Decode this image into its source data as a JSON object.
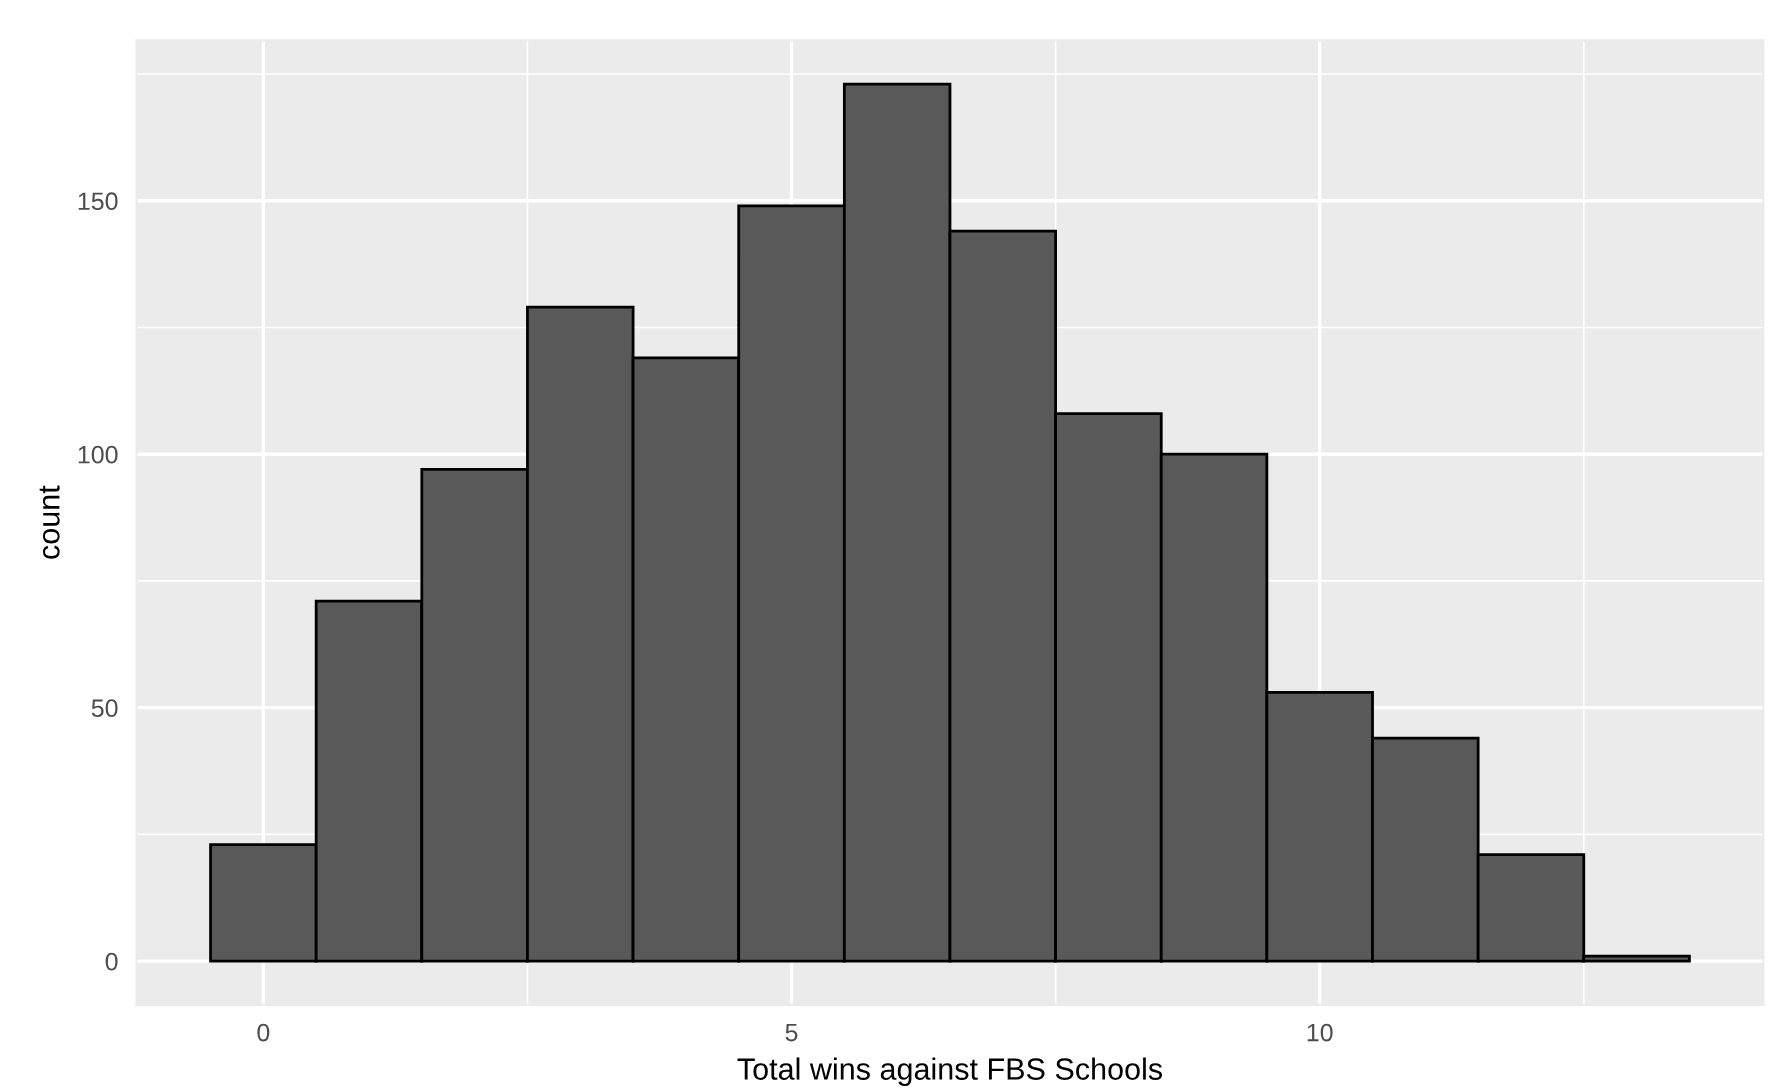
{
  "chart_data": {
    "type": "histogram",
    "xlabel": "Total wins against FBS Schools",
    "ylabel": "count",
    "bins": [
      -0.5,
      0.5,
      1.5,
      2.5,
      3.5,
      4.5,
      5.5,
      6.5,
      7.5,
      8.5,
      9.5,
      10.5,
      11.5,
      12.5,
      13.5
    ],
    "values": [
      23,
      71,
      97,
      129,
      119,
      149,
      173,
      144,
      108,
      100,
      53,
      44,
      21,
      1
    ],
    "color": "#595959",
    "xlim": [
      -1.2,
      14.2
    ],
    "xticks": [
      0,
      5,
      10
    ],
    "ylim": [
      -8.65,
      181.65
    ],
    "yticks": [
      0,
      50,
      100,
      150
    ],
    "grid": true
  }
}
